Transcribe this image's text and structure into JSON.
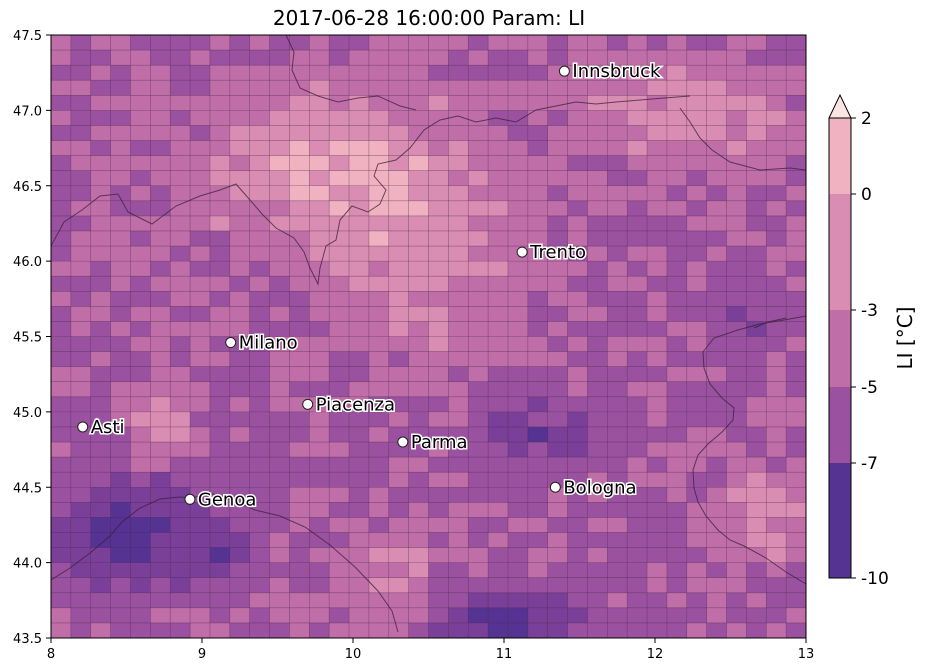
{
  "title": "2017-06-28 16:00:00 Param: LI",
  "map": {
    "lon_range": [
      8,
      13
    ],
    "lat_range": [
      43.5,
      47.5
    ],
    "x_ticks": [
      "8",
      "9",
      "10",
      "11",
      "12",
      "13"
    ],
    "y_ticks": [
      "43.5",
      "44.0",
      "44.5",
      "45.0",
      "45.5",
      "46.0",
      "46.5",
      "47.0",
      "47.5"
    ],
    "grid_cols": 38,
    "grid_rows": 40
  },
  "cities": [
    {
      "name": "Innsbruck",
      "lon": 11.4,
      "lat": 47.26
    },
    {
      "name": "Trento",
      "lon": 11.12,
      "lat": 46.06
    },
    {
      "name": "Milano",
      "lon": 9.19,
      "lat": 45.46
    },
    {
      "name": "Piacenza",
      "lon": 9.7,
      "lat": 45.05
    },
    {
      "name": "Asti",
      "lon": 8.21,
      "lat": 44.9
    },
    {
      "name": "Parma",
      "lon": 10.33,
      "lat": 44.8
    },
    {
      "name": "Bologna",
      "lon": 11.34,
      "lat": 44.5
    },
    {
      "name": "Genoa",
      "lon": 8.92,
      "lat": 44.42
    }
  ],
  "colorbar": {
    "label": "LI  [°C]",
    "levels": [
      "2",
      "0",
      "-3",
      "-5",
      "-7",
      "-10"
    ],
    "colors": [
      "#fbe5e2",
      "#f0b2c0",
      "#da8db2",
      "#c06ea8",
      "#9a52a0",
      "#7a3f98",
      "#553392"
    ]
  }
}
